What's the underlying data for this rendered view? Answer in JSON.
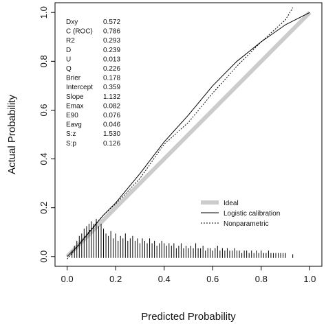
{
  "chart_data": {
    "type": "line",
    "xlabel": "Predicted Probability",
    "ylabel": "Actual Probability",
    "xlim": [
      -0.05,
      1.05
    ],
    "ylim": [
      -0.04,
      1.04
    ],
    "x_ticks": [
      0.0,
      0.2,
      0.4,
      0.6,
      0.8,
      1.0
    ],
    "x_tick_labels": [
      "0.0",
      "0.2",
      "0.4",
      "0.6",
      "0.8",
      "1.0"
    ],
    "y_ticks": [
      0.0,
      0.2,
      0.4,
      0.6,
      0.8,
      1.0
    ],
    "y_tick_labels": [
      "0.0",
      "0.2",
      "0.4",
      "0.6",
      "0.8",
      "1.0"
    ],
    "grid": false,
    "legend_position": "bottom-right",
    "stats": [
      {
        "label": "Dxy",
        "value": "0.572"
      },
      {
        "label": "C (ROC)",
        "value": "0.786"
      },
      {
        "label": "R2",
        "value": "0.293"
      },
      {
        "label": "D",
        "value": "0.239"
      },
      {
        "label": "U",
        "value": "0.013"
      },
      {
        "label": "Q",
        "value": "0.226"
      },
      {
        "label": "Brier",
        "value": "0.178"
      },
      {
        "label": "Intercept",
        "value": "0.359"
      },
      {
        "label": "Slope",
        "value": "1.132"
      },
      {
        "label": "Emax",
        "value": "0.082"
      },
      {
        "label": "E90",
        "value": "0.076"
      },
      {
        "label": "Eavg",
        "value": "0.046"
      },
      {
        "label": "S:z",
        "value": "1.530"
      },
      {
        "label": "S:p",
        "value": "0.126"
      }
    ],
    "series": [
      {
        "name": "Ideal",
        "style": "thick-gray",
        "color": "#cccccc",
        "x": [
          0.0,
          1.0
        ],
        "y": [
          0.0,
          1.0
        ]
      },
      {
        "name": "Logistic calibration",
        "style": "solid",
        "color": "#000000",
        "x": [
          0.0,
          0.05,
          0.1,
          0.15,
          0.2,
          0.3,
          0.4,
          0.5,
          0.6,
          0.7,
          0.8,
          0.9,
          1.0
        ],
        "y": [
          0.0,
          0.05,
          0.11,
          0.17,
          0.22,
          0.34,
          0.47,
          0.58,
          0.7,
          0.8,
          0.88,
          0.95,
          1.0
        ]
      },
      {
        "name": "Nonparametric",
        "style": "dotted",
        "color": "#000000",
        "x": [
          0.0,
          0.05,
          0.1,
          0.15,
          0.2,
          0.3,
          0.4,
          0.5,
          0.6,
          0.7,
          0.8,
          0.9,
          0.93
        ],
        "y": [
          -0.01,
          0.05,
          0.115,
          0.17,
          0.215,
          0.32,
          0.46,
          0.55,
          0.67,
          0.78,
          0.88,
          0.97,
          1.02
        ]
      }
    ],
    "rug": {
      "description": "spike histogram of predicted probabilities",
      "x": [
        0.02,
        0.03,
        0.04,
        0.05,
        0.06,
        0.07,
        0.08,
        0.09,
        0.1,
        0.11,
        0.12,
        0.13,
        0.14,
        0.15,
        0.16,
        0.17,
        0.18,
        0.19,
        0.2,
        0.21,
        0.22,
        0.23,
        0.24,
        0.25,
        0.26,
        0.27,
        0.28,
        0.29,
        0.3,
        0.31,
        0.32,
        0.33,
        0.34,
        0.35,
        0.36,
        0.37,
        0.38,
        0.39,
        0.4,
        0.41,
        0.42,
        0.43,
        0.44,
        0.45,
        0.46,
        0.47,
        0.48,
        0.49,
        0.5,
        0.51,
        0.52,
        0.53,
        0.54,
        0.55,
        0.56,
        0.57,
        0.58,
        0.59,
        0.6,
        0.61,
        0.62,
        0.63,
        0.64,
        0.65,
        0.66,
        0.67,
        0.68,
        0.69,
        0.7,
        0.71,
        0.72,
        0.73,
        0.74,
        0.75,
        0.76,
        0.77,
        0.78,
        0.79,
        0.8,
        0.81,
        0.82,
        0.83,
        0.84,
        0.85,
        0.86,
        0.87,
        0.88,
        0.89,
        0.9,
        0.93
      ],
      "height": [
        0.03,
        0.05,
        0.07,
        0.09,
        0.1,
        0.12,
        0.13,
        0.14,
        0.15,
        0.14,
        0.16,
        0.13,
        0.14,
        0.12,
        0.1,
        0.09,
        0.11,
        0.08,
        0.1,
        0.07,
        0.09,
        0.08,
        0.1,
        0.07,
        0.08,
        0.09,
        0.07,
        0.08,
        0.06,
        0.08,
        0.07,
        0.06,
        0.08,
        0.06,
        0.07,
        0.05,
        0.06,
        0.07,
        0.06,
        0.05,
        0.06,
        0.05,
        0.06,
        0.04,
        0.05,
        0.06,
        0.04,
        0.05,
        0.04,
        0.05,
        0.04,
        0.06,
        0.04,
        0.04,
        0.05,
        0.03,
        0.04,
        0.04,
        0.03,
        0.04,
        0.05,
        0.03,
        0.04,
        0.03,
        0.04,
        0.03,
        0.03,
        0.04,
        0.03,
        0.03,
        0.02,
        0.03,
        0.03,
        0.02,
        0.03,
        0.02,
        0.03,
        0.02,
        0.03,
        0.02,
        0.02,
        0.03,
        0.02,
        0.02,
        0.02,
        0.02,
        0.02,
        0.02,
        0.02,
        0.015
      ]
    }
  }
}
